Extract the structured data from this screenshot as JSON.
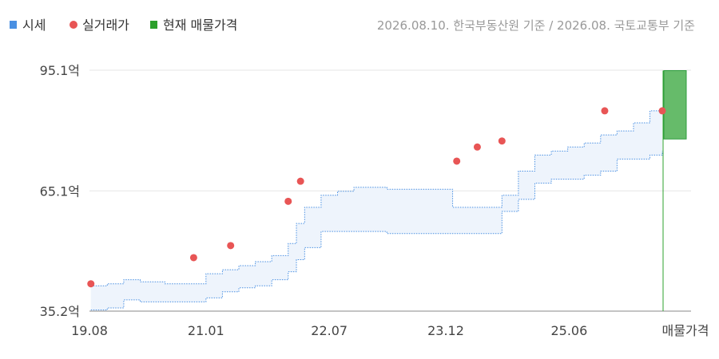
{
  "legend": {
    "items": [
      {
        "label": "시세",
        "color": "#4a90e2",
        "shape": "square"
      },
      {
        "label": "실거래가",
        "color": "#e85555",
        "shape": "circle"
      },
      {
        "label": "현재 매물가격",
        "color": "#2ca02c",
        "shape": "square"
      }
    ]
  },
  "source": "2026.08.10. 한국부동산원 기준 / 2026.08. 국토교통부 기준",
  "chart_data": {
    "type": "area",
    "title": "",
    "xlabel": "",
    "ylabel": "",
    "y_unit": "억",
    "ylim": [
      35.2,
      95.1
    ],
    "y_ticks": [
      35.2,
      65.1,
      95.1
    ],
    "y_tick_labels": [
      "35.2억",
      "65.1억",
      "95.1억"
    ],
    "x_ticks": [
      "19.08",
      "21.01",
      "22.07",
      "23.12",
      "25.06"
    ],
    "x_tick_values": [
      2019.583,
      2021.0,
      2022.5,
      2023.917,
      2025.417
    ],
    "x_range": [
      2019.583,
      2026.6
    ],
    "extra_category_label": "매물가격",
    "grid": true,
    "series": [
      {
        "name": "시세",
        "color": "#4a90e2",
        "x": [
          2019.6,
          2019.8,
          2020.0,
          2020.2,
          2020.5,
          2020.8,
          2021.0,
          2021.2,
          2021.4,
          2021.6,
          2021.8,
          2022.0,
          2022.1,
          2022.2,
          2022.4,
          2022.6,
          2022.8,
          2023.0,
          2023.2,
          2023.4,
          2023.6,
          2023.8,
          2024.0,
          2024.2,
          2024.4,
          2024.6,
          2024.8,
          2025.0,
          2025.2,
          2025.4,
          2025.6,
          2025.8,
          2026.0,
          2026.2,
          2026.4,
          2026.55
        ],
        "upper": [
          41.5,
          42.0,
          43.0,
          42.5,
          42.0,
          42.0,
          44.5,
          45.5,
          46.5,
          47.5,
          49.0,
          52.0,
          57.0,
          61.0,
          64.0,
          65.0,
          66.0,
          66.0,
          65.5,
          65.5,
          65.5,
          65.5,
          61.0,
          61.0,
          61.0,
          64.0,
          70.0,
          74.0,
          75.0,
          76.0,
          77.0,
          79.0,
          80.0,
          82.0,
          85.0,
          85.0
        ],
        "lower": [
          35.5,
          36.0,
          38.0,
          37.5,
          37.5,
          37.5,
          38.5,
          40.0,
          41.0,
          41.5,
          43.0,
          45.0,
          48.0,
          51.0,
          55.0,
          55.0,
          55.0,
          55.0,
          54.5,
          54.5,
          54.5,
          54.5,
          54.5,
          54.5,
          54.5,
          60.0,
          63.0,
          67.0,
          68.0,
          68.0,
          69.0,
          70.0,
          73.0,
          73.0,
          74.0,
          75.0
        ]
      },
      {
        "name": "실거래가",
        "color": "#e85555",
        "x": [
          2019.6,
          2020.85,
          2021.3,
          2022.0,
          2022.15,
          2024.05,
          2024.3,
          2024.6,
          2025.85,
          2026.55
        ],
        "y": [
          42.0,
          48.5,
          51.5,
          62.5,
          67.5,
          72.5,
          76.0,
          77.5,
          85.0,
          85.0
        ]
      },
      {
        "name": "현재 매물가격",
        "color": "#2ca02c",
        "range": [
          78.0,
          95.0
        ]
      }
    ]
  }
}
